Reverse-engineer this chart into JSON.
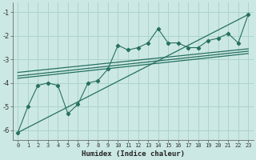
{
  "xlabel": "Humidex (Indice chaleur)",
  "bg_color": "#cce8e4",
  "grid_color": "#aad4cc",
  "line_color": "#267060",
  "xlim": [
    -0.5,
    23.5
  ],
  "ylim": [
    -6.4,
    -0.6
  ],
  "xticks": [
    0,
    1,
    2,
    3,
    4,
    5,
    6,
    7,
    8,
    9,
    10,
    11,
    12,
    13,
    14,
    15,
    16,
    17,
    18,
    19,
    20,
    21,
    22,
    23
  ],
  "yticks": [
    -6,
    -5,
    -4,
    -3,
    -2,
    -1
  ],
  "scatter_x": [
    0,
    1,
    2,
    3,
    4,
    5,
    6,
    7,
    8,
    9,
    10,
    11,
    12,
    13,
    14,
    15,
    16,
    17,
    18,
    19,
    20,
    21,
    22,
    23
  ],
  "scatter_y": [
    -6.1,
    -5.0,
    -4.1,
    -4.0,
    -4.1,
    -5.3,
    -4.9,
    -4.0,
    -3.9,
    -3.4,
    -2.4,
    -2.6,
    -2.5,
    -2.3,
    -1.7,
    -2.3,
    -2.3,
    -2.5,
    -2.5,
    -2.2,
    -2.1,
    -1.9,
    -2.3,
    -1.1
  ],
  "line1_x": [
    0,
    23
  ],
  "line1_y": [
    -6.1,
    -1.1
  ],
  "line2_x": [
    0,
    23
  ],
  "line2_y": [
    -3.55,
    -2.55
  ],
  "line3_x": [
    0,
    23
  ],
  "line3_y": [
    -3.7,
    -2.65
  ],
  "line4_x": [
    0,
    23
  ],
  "line4_y": [
    -3.8,
    -2.75
  ]
}
